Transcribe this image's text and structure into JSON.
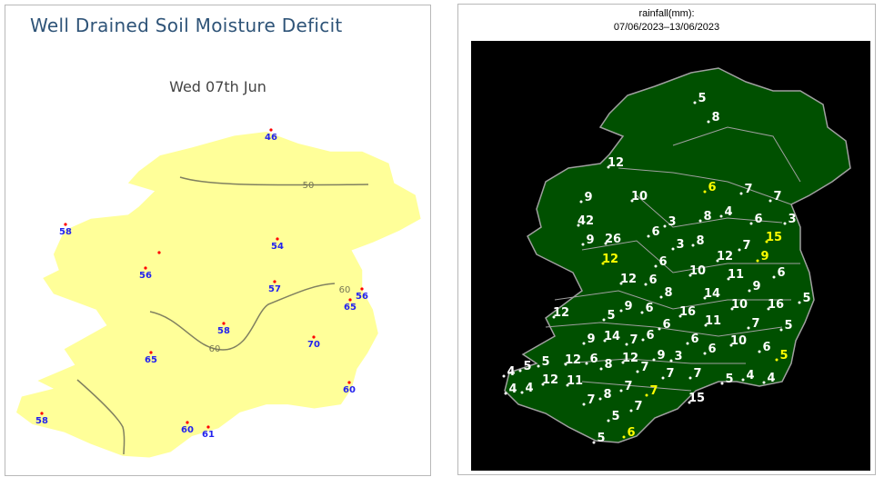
{
  "left_panel": {
    "title": "Well Drained Soil Moisture Deficit",
    "date": "Wed 07th Jun",
    "land_color": "#ffff99",
    "label_color": "#2222ee",
    "station_dot_color": "#ff0000",
    "contour_color": "#808060",
    "station_values": [
      "46",
      "58",
      "54",
      "56",
      "57",
      "56",
      "65",
      "58",
      "70",
      "65",
      "60",
      "58",
      "60",
      "61"
    ],
    "contour_labels": [
      "50",
      "60",
      "60"
    ]
  },
  "right_panel": {
    "title_line1": "rainfall(mm):",
    "title_line2": "07/06/2023–13/06/2023",
    "background_color": "#000000",
    "land_color": "#005000",
    "border_color": "#a0a0a0",
    "label_color": "#ffffff",
    "highlight_color": "#ffff00",
    "station_values": [
      "5",
      "8",
      "12",
      "9",
      "10",
      "6",
      "7",
      "7",
      "42",
      "3",
      "8",
      "4",
      "6",
      "3",
      "9",
      "26",
      "6",
      "3",
      "8",
      "7",
      "15",
      "12",
      "6",
      "12",
      "9",
      "12",
      "6",
      "10",
      "11",
      "6",
      "8",
      "14",
      "9",
      "5",
      "12",
      "5",
      "9",
      "6",
      "16",
      "10",
      "16",
      "11",
      "6",
      "7",
      "5",
      "9",
      "14",
      "7",
      "6",
      "6",
      "10",
      "6",
      "6",
      "5",
      "12",
      "6",
      "8",
      "12",
      "9",
      "3",
      "5",
      "5",
      "4",
      "7",
      "7",
      "7",
      "5",
      "4",
      "4",
      "12",
      "11",
      "4",
      "4",
      "7",
      "7",
      "8",
      "7",
      "15",
      "7",
      "5",
      "6",
      "5"
    ],
    "highlighted_values_index": [
      5,
      20,
      21,
      24,
      53,
      74,
      80
    ]
  }
}
